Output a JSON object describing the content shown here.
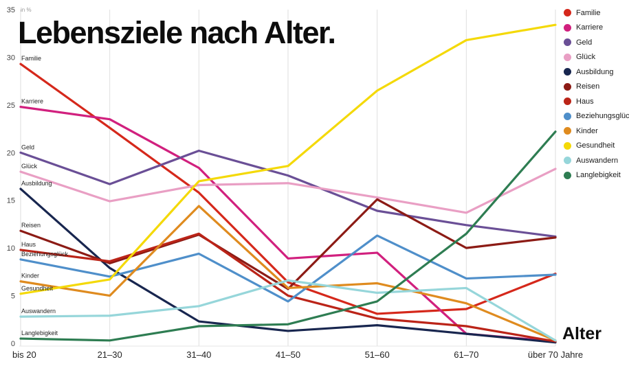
{
  "chart_data": {
    "type": "line",
    "title": "Lebensziele nach Alter.",
    "xlabel": "Alter",
    "ylabel": "in %",
    "categories": [
      "bis 20",
      "21–30",
      "31–40",
      "41–50",
      "51–60",
      "61–70",
      "über 70 Jahre"
    ],
    "ylim": [
      0,
      35
    ],
    "yticks": [
      0,
      5,
      10,
      15,
      20,
      25,
      30,
      35
    ],
    "grid": "vertical-category-lines",
    "legend_position": "top-right",
    "series": [
      {
        "name": "Familie",
        "color": "#d5281b",
        "values": [
          29.3,
          22.6,
          15.8,
          6.4,
          3.1,
          3.6,
          7.3
        ]
      },
      {
        "name": "Karriere",
        "color": "#d1207e",
        "values": [
          24.8,
          23.5,
          18.4,
          8.9,
          9.5,
          1.0,
          0.2
        ]
      },
      {
        "name": "Geld",
        "color": "#6a4f96",
        "values": [
          20.0,
          16.7,
          20.2,
          17.6,
          13.9,
          12.4,
          11.2
        ]
      },
      {
        "name": "Glück",
        "color": "#e99fc4",
        "values": [
          18.0,
          14.9,
          16.6,
          16.8,
          15.3,
          13.7,
          18.3
        ]
      },
      {
        "name": "Ausbildung",
        "color": "#18264f",
        "values": [
          16.2,
          7.9,
          2.3,
          1.3,
          1.9,
          1.0,
          0.1
        ]
      },
      {
        "name": "Reisen",
        "color": "#8c1b15",
        "values": [
          11.8,
          8.4,
          11.4,
          5.7,
          15.1,
          10.0,
          11.1
        ]
      },
      {
        "name": "Haus",
        "color": "#bb2418",
        "values": [
          9.8,
          8.6,
          11.5,
          5.0,
          2.6,
          1.8,
          0.2
        ]
      },
      {
        "name": "Beziehungsglück",
        "color": "#4f8fca",
        "values": [
          8.8,
          7.0,
          9.4,
          4.4,
          11.3,
          6.8,
          7.2
        ]
      },
      {
        "name": "Kinder",
        "color": "#df8b1f",
        "values": [
          6.5,
          5.0,
          14.4,
          5.8,
          6.3,
          4.2,
          0.3
        ]
      },
      {
        "name": "Gesundheit",
        "color": "#f4d908",
        "values": [
          5.2,
          6.7,
          17.0,
          18.6,
          26.5,
          31.8,
          33.4
        ]
      },
      {
        "name": "Auswandern",
        "color": "#96d6da",
        "values": [
          2.8,
          2.9,
          3.9,
          6.6,
          5.3,
          5.8,
          0.3
        ]
      },
      {
        "name": "Langlebigkeit",
        "color": "#2e7d52",
        "values": [
          0.5,
          0.3,
          1.8,
          2.0,
          4.4,
          11.5,
          22.2
        ]
      }
    ]
  }
}
